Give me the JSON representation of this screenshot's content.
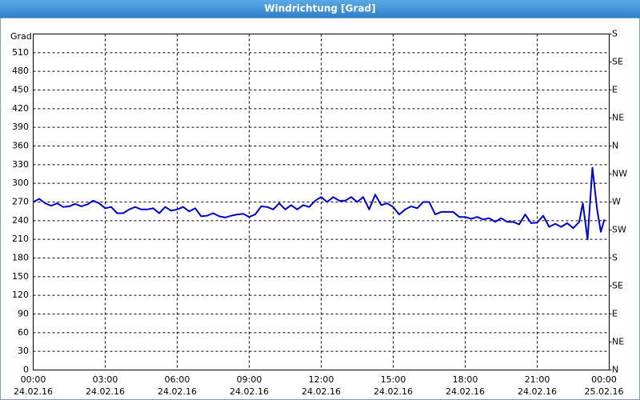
{
  "chart_data": {
    "type": "line",
    "title": "Windrichtung [Grad]",
    "y_label": "Grad",
    "xlim": [
      0,
      24
    ],
    "xticks": [
      {
        "value": 0,
        "label": "00:00",
        "date": "24.02.16"
      },
      {
        "value": 3,
        "label": "03:00",
        "date": "24.02.16"
      },
      {
        "value": 6,
        "label": "06:00",
        "date": "24.02.16"
      },
      {
        "value": 9,
        "label": "09:00",
        "date": "24.02.16"
      },
      {
        "value": 12,
        "label": "12:00",
        "date": "24.02.16"
      },
      {
        "value": 15,
        "label": "15:00",
        "date": "24.02.16"
      },
      {
        "value": 18,
        "label": "18:00",
        "date": "24.02.16"
      },
      {
        "value": 21,
        "label": "21:00",
        "date": "24.02.16"
      },
      {
        "value": 24,
        "label": "00:00",
        "date": "25.02.16"
      }
    ],
    "ylim": [
      0,
      540
    ],
    "yticks": [
      0,
      30,
      60,
      90,
      120,
      150,
      180,
      210,
      240,
      270,
      300,
      330,
      360,
      390,
      420,
      450,
      480,
      510
    ],
    "y2lim": [
      0,
      540
    ],
    "y2ticks": [
      {
        "value": 0,
        "label": "N"
      },
      {
        "value": 45,
        "label": "NE"
      },
      {
        "value": 90,
        "label": "E"
      },
      {
        "value": 135,
        "label": "SE"
      },
      {
        "value": 180,
        "label": "S"
      },
      {
        "value": 225,
        "label": "SW"
      },
      {
        "value": 270,
        "label": "W"
      },
      {
        "value": 315,
        "label": "NW"
      },
      {
        "value": 360,
        "label": "N"
      },
      {
        "value": 405,
        "label": "NE"
      },
      {
        "value": 450,
        "label": "E"
      },
      {
        "value": 495,
        "label": "SE"
      },
      {
        "value": 540,
        "label": "S"
      }
    ],
    "grid": true,
    "x": [
      0,
      0.25,
      0.5,
      0.75,
      1.0,
      1.25,
      1.5,
      1.75,
      2.0,
      2.25,
      2.5,
      2.75,
      3.0,
      3.25,
      3.5,
      3.75,
      4.0,
      4.25,
      4.5,
      4.75,
      5.0,
      5.25,
      5.5,
      5.75,
      6.0,
      6.25,
      6.5,
      6.75,
      7.0,
      7.25,
      7.5,
      7.75,
      8.0,
      8.25,
      8.5,
      8.75,
      9.0,
      9.25,
      9.5,
      9.75,
      10.0,
      10.25,
      10.5,
      10.75,
      11.0,
      11.25,
      11.5,
      11.75,
      12.0,
      12.25,
      12.5,
      12.75,
      13.0,
      13.25,
      13.5,
      13.75,
      14.0,
      14.25,
      14.5,
      14.75,
      15.0,
      15.25,
      15.5,
      15.75,
      16.0,
      16.25,
      16.5,
      16.75,
      17.0,
      17.25,
      17.5,
      17.75,
      18.0,
      18.25,
      18.5,
      18.75,
      19.0,
      19.25,
      19.5,
      19.75,
      20.0,
      20.25,
      20.5,
      20.75,
      21.0,
      21.25,
      21.5,
      21.75,
      22.0,
      22.25,
      22.5,
      22.75,
      22.9,
      23.1,
      23.3,
      23.5,
      23.65,
      23.8
    ],
    "series": [
      {
        "name": "Windrichtung",
        "color": "#0000cc",
        "values": [
          270,
          275,
          268,
          264,
          268,
          262,
          263,
          267,
          263,
          266,
          272,
          268,
          260,
          262,
          252,
          252,
          258,
          262,
          258,
          258,
          260,
          252,
          262,
          256,
          258,
          262,
          255,
          260,
          247,
          248,
          252,
          247,
          245,
          248,
          250,
          251,
          246,
          250,
          263,
          262,
          258,
          268,
          258,
          265,
          258,
          265,
          262,
          272,
          278,
          270,
          278,
          272,
          272,
          278,
          270,
          278,
          258,
          282,
          265,
          268,
          262,
          250,
          258,
          263,
          260,
          270,
          270,
          250,
          254,
          254,
          254,
          246,
          246,
          243,
          246,
          242,
          244,
          238,
          244,
          238,
          238,
          234,
          250,
          236,
          237,
          248,
          230,
          235,
          230,
          236,
          228,
          238,
          268,
          210,
          325,
          257,
          222,
          242
        ]
      }
    ]
  }
}
